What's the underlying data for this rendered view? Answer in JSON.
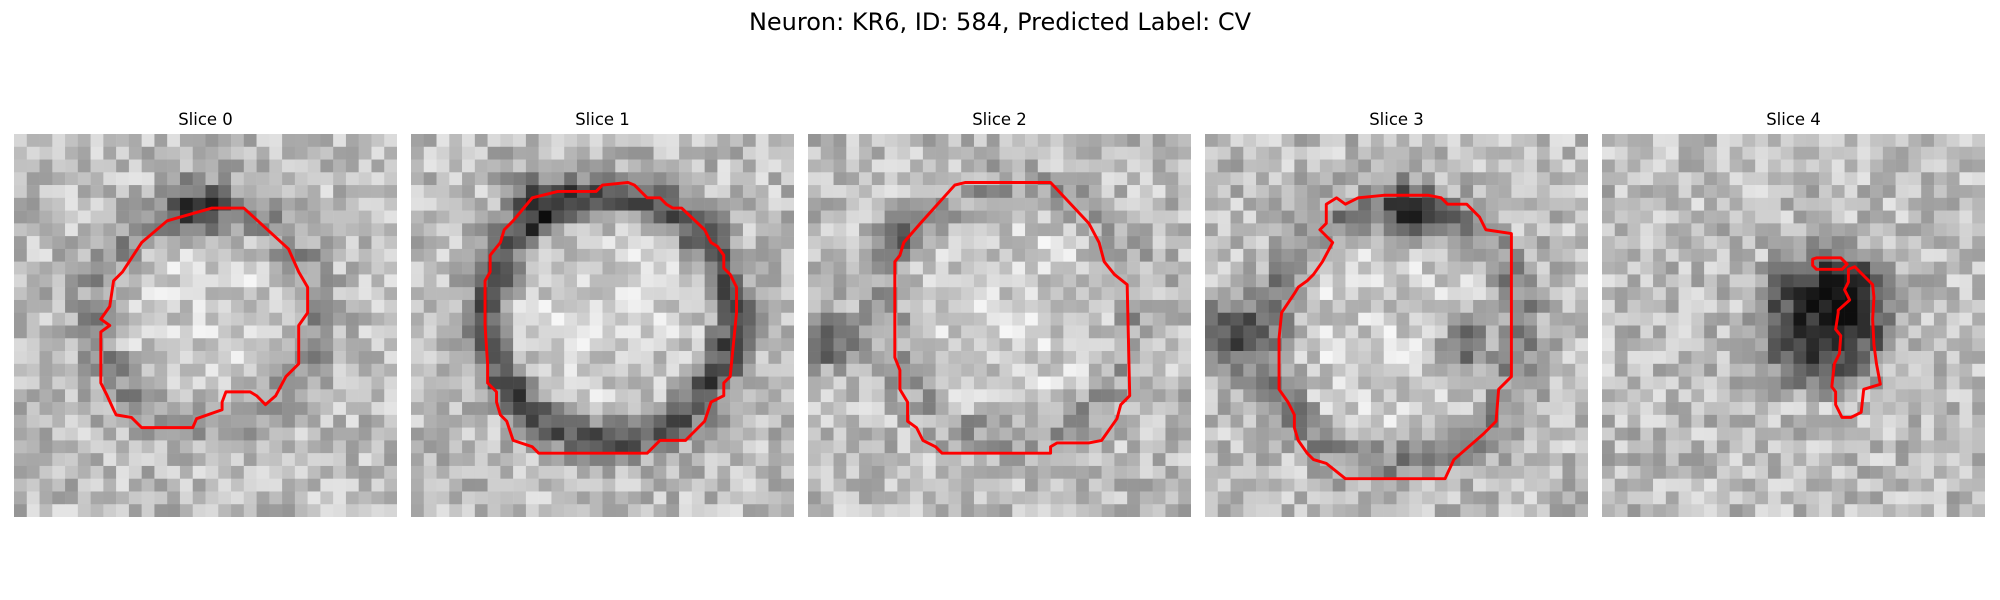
{
  "figure": {
    "title": "Neuron: KR6, ID: 584, Predicted Label: CV",
    "outline_color": "#ff0000"
  },
  "panels": [
    {
      "title": "Slice 0"
    },
    {
      "title": "Slice 1"
    },
    {
      "title": "Slice 2"
    },
    {
      "title": "Slice 3"
    },
    {
      "title": "Slice 4"
    }
  ]
}
